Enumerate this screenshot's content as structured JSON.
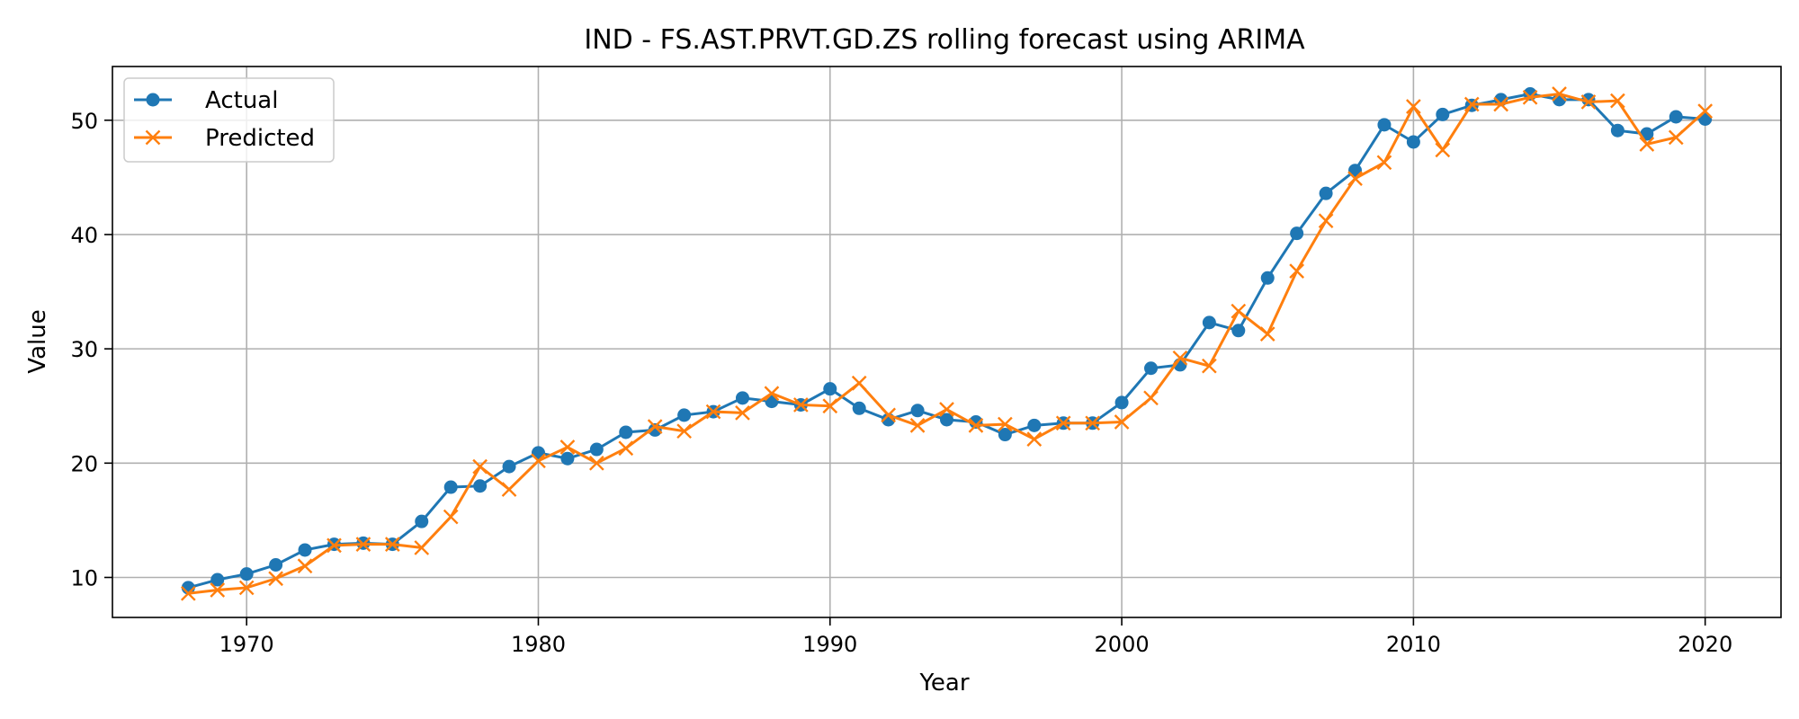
{
  "chart_data": {
    "type": "line",
    "title": "IND - FS.AST.PRVT.GD.ZS rolling forecast using ARIMA",
    "xlabel": "Year",
    "ylabel": "Value",
    "xlim": [
      1965.4,
      2022.6
    ],
    "ylim": [
      6.5,
      54.7
    ],
    "xticks": [
      1970,
      1980,
      1990,
      2000,
      2010,
      2020
    ],
    "yticks": [
      10,
      20,
      30,
      40,
      50
    ],
    "grid": true,
    "legend_position": "top-left",
    "x": [
      1968,
      1969,
      1970,
      1971,
      1972,
      1973,
      1974,
      1975,
      1976,
      1977,
      1978,
      1979,
      1980,
      1981,
      1982,
      1983,
      1984,
      1985,
      1986,
      1987,
      1988,
      1989,
      1990,
      1991,
      1992,
      1993,
      1994,
      1995,
      1996,
      1997,
      1998,
      1999,
      2000,
      2001,
      2002,
      2003,
      2004,
      2005,
      2006,
      2007,
      2008,
      2009,
      2010,
      2011,
      2012,
      2013,
      2014,
      2015,
      2016,
      2017,
      2018,
      2019,
      2020
    ],
    "series": [
      {
        "name": "Actual",
        "color": "#1f77b4",
        "marker": "circle",
        "values": [
          9.1,
          9.8,
          10.3,
          11.1,
          12.4,
          12.9,
          13.0,
          12.9,
          14.9,
          17.9,
          18.0,
          19.7,
          20.9,
          20.4,
          21.2,
          22.7,
          22.9,
          24.2,
          24.5,
          25.7,
          25.4,
          25.1,
          26.5,
          24.8,
          23.8,
          24.6,
          23.8,
          23.6,
          22.5,
          23.3,
          23.5,
          23.5,
          25.3,
          28.3,
          28.6,
          32.3,
          31.6,
          36.2,
          40.1,
          43.6,
          45.6,
          49.6,
          48.1,
          50.5,
          51.3,
          51.8,
          52.3,
          51.8,
          51.8,
          49.1,
          48.8,
          50.3,
          50.1
        ]
      },
      {
        "name": "Predicted",
        "color": "#ff7f0e",
        "marker": "x",
        "values": [
          8.6,
          8.9,
          9.1,
          9.9,
          11.0,
          12.8,
          12.9,
          12.9,
          12.6,
          15.3,
          19.7,
          17.7,
          20.2,
          21.4,
          20.0,
          21.3,
          23.2,
          22.8,
          24.5,
          24.4,
          26.1,
          25.1,
          25.0,
          27.0,
          24.2,
          23.3,
          24.7,
          23.3,
          23.4,
          22.1,
          23.5,
          23.5,
          23.6,
          25.7,
          29.2,
          28.5,
          33.3,
          31.3,
          36.8,
          41.2,
          44.9,
          46.3,
          51.2,
          47.4,
          51.4,
          51.4,
          52.0,
          52.3,
          51.6,
          51.7,
          47.9,
          48.5,
          50.8
        ]
      }
    ]
  }
}
